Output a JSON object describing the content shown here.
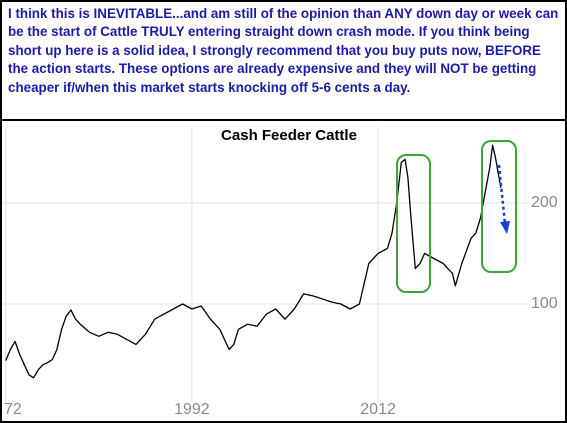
{
  "annotation": "I think this is INEVITABLE...and am still of the opinion than ANY down day or week can be the start of Cattle TRULY entering straight down crash mode. If you think being short up here is a solid idea, I strongly recommend that you buy puts now, BEFORE the action starts. These options are already expensive and they will NOT be getting cheaper if/when this market starts knocking off 5-6 cents a day.",
  "chart_data": {
    "type": "line",
    "title": "Cash Feeder Cattle",
    "x": [
      1972.0,
      1972.5,
      1973.0,
      1973.5,
      1974.0,
      1974.5,
      1975.0,
      1975.5,
      1976,
      1976.5,
      1977,
      1977.5,
      1978,
      1978.5,
      1979,
      1979.5,
      1980,
      1981,
      1982,
      1983,
      1984,
      1985,
      1986,
      1987,
      1988,
      1989,
      1990,
      1991,
      1992,
      1993,
      1994,
      1995,
      1996,
      1996.5,
      1997,
      1998,
      1999,
      2000,
      2001,
      2002,
      2003,
      2004,
      2005,
      2006,
      2007,
      2008,
      2009,
      2010,
      2011,
      2012,
      2013,
      2013.5,
      2014,
      2014.5,
      2014.9,
      2015.2,
      2015.5,
      2016,
      2016.5,
      2017,
      2018,
      2019,
      2020,
      2020.3,
      2021,
      2022,
      2022.5,
      2023,
      2023.5,
      2024,
      2024.3,
      2024.6,
      2024.9,
      2025.2
    ],
    "series": [
      {
        "color": "#000000",
        "values": [
          44,
          55,
          63,
          50,
          40,
          30,
          27,
          35,
          40,
          42,
          45,
          55,
          75,
          88,
          94,
          85,
          80,
          72,
          68,
          72,
          70,
          65,
          60,
          70,
          85,
          90,
          95,
          100,
          95,
          98,
          85,
          75,
          55,
          60,
          75,
          80,
          78,
          90,
          95,
          85,
          95,
          110,
          108,
          105,
          102,
          100,
          95,
          100,
          140,
          150,
          155,
          170,
          200,
          240,
          243,
          225,
          190,
          135,
          140,
          150,
          145,
          140,
          130,
          118,
          140,
          165,
          170,
          185,
          210,
          235,
          257,
          245,
          230,
          215
        ]
      }
    ],
    "xlim": [
      1971.6,
      2028
    ],
    "xticks": [
      {
        "value": 1972,
        "label": "72"
      },
      1992,
      2012
    ],
    "ylim": [
      10,
      275
    ],
    "yticks": [
      100,
      200
    ],
    "grid": true
  }
}
